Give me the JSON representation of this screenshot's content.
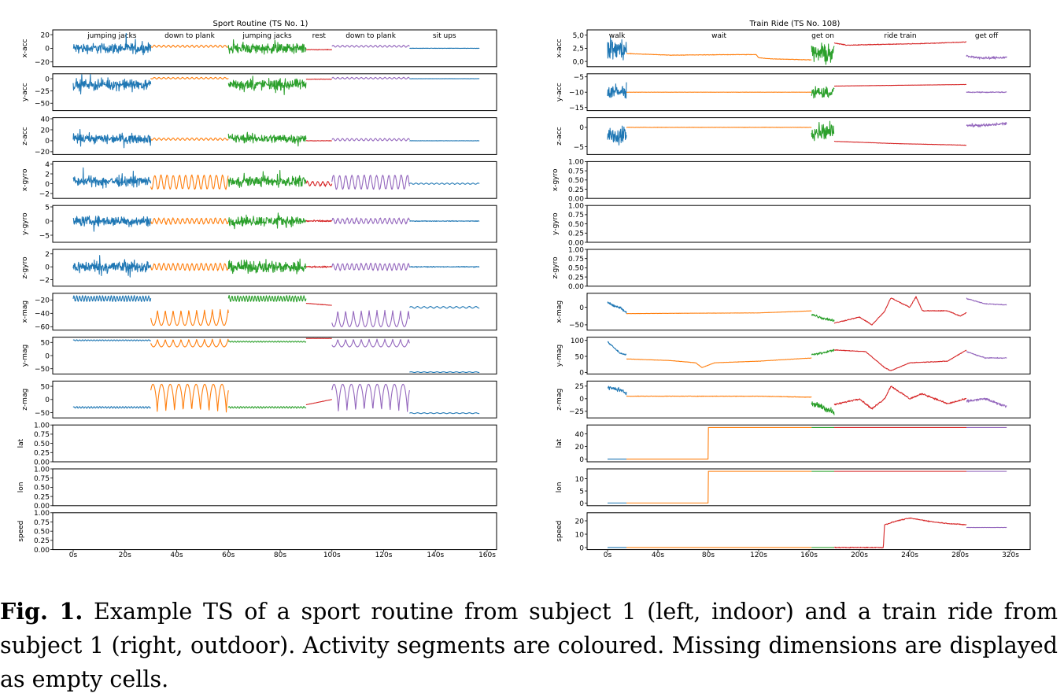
{
  "figure": {
    "colors": [
      "#1f77b4",
      "#ff7f0e",
      "#2ca02c",
      "#d62728",
      "#9467bd"
    ],
    "panels": [
      {
        "title": "Sport Routine (TS No. 1)",
        "x_tick_labels": [
          "0s",
          "20s",
          "40s",
          "60s",
          "80s",
          "100s",
          "120s",
          "140s",
          "160s"
        ],
        "chart_data": {
          "type": "line",
          "x_unit": "s",
          "x_range": [
            0,
            160
          ],
          "segments": [
            {
              "label": "jumping jacks",
              "start": 0,
              "end": 30
            },
            {
              "label": "down to plank",
              "start": 30,
              "end": 60
            },
            {
              "label": "jumping jacks",
              "start": 60,
              "end": 90
            },
            {
              "label": "rest",
              "start": 90,
              "end": 100
            },
            {
              "label": "down to plank",
              "start": 100,
              "end": 130
            },
            {
              "label": "sit ups",
              "start": 130,
              "end": 157
            }
          ],
          "series": [
            {
              "name": "x-acc",
              "ylim": [
                -27,
                27
              ],
              "yticks": [
                "20",
                "0",
                "−20"
              ]
            },
            {
              "name": "y-acc",
              "ylim": [
                -65,
                10
              ],
              "yticks": [
                "0",
                "−25",
                "−50"
              ]
            },
            {
              "name": "z-acc",
              "ylim": [
                -25,
                42
              ],
              "yticks": [
                "40",
                "20",
                "0",
                "−20"
              ]
            },
            {
              "name": "x-gyro",
              "ylim": [
                -3,
                4.5
              ],
              "yticks": [
                "4",
                "2",
                "0",
                "−2"
              ]
            },
            {
              "name": "y-gyro",
              "ylim": [
                -7.5,
                5.5
              ],
              "yticks": [
                "5",
                "0",
                "−5"
              ]
            },
            {
              "name": "z-gyro",
              "ylim": [
                -3,
                2.7
              ],
              "yticks": [
                "2",
                "0",
                "−2"
              ]
            },
            {
              "name": "x-mag",
              "ylim": [
                -65,
                -10
              ],
              "yticks": [
                "−20",
                "−40",
                "−60"
              ]
            },
            {
              "name": "y-mag",
              "ylim": [
                -70,
                70
              ],
              "yticks": [
                "50",
                "0",
                "−50"
              ]
            },
            {
              "name": "z-mag",
              "ylim": [
                -70,
                70
              ],
              "yticks": [
                "50",
                "0",
                "−50"
              ]
            },
            {
              "name": "lat",
              "empty": true,
              "ylim": [
                0,
                1
              ],
              "yticks": [
                "1.00",
                "0.75",
                "0.50",
                "0.25",
                "0.00"
              ]
            },
            {
              "name": "lon",
              "empty": true,
              "ylim": [
                0,
                1
              ],
              "yticks": [
                "1.00",
                "0.75",
                "0.50",
                "0.25",
                "0.00"
              ]
            },
            {
              "name": "speed",
              "empty": true,
              "ylim": [
                0,
                1
              ],
              "yticks": [
                "1.00",
                "0.75",
                "0.50",
                "0.25",
                "0.00"
              ]
            }
          ]
        }
      },
      {
        "title": "Train Ride (TS No. 108)",
        "x_tick_labels": [
          "0s",
          "40s",
          "80s",
          "120s",
          "160s",
          "200s",
          "240s",
          "280s",
          "320s"
        ],
        "chart_data": {
          "type": "line",
          "x_unit": "s",
          "x_range": [
            0,
            320
          ],
          "segments": [
            {
              "label": "walk",
              "start": 0,
              "end": 15
            },
            {
              "label": "wait",
              "start": 15,
              "end": 162
            },
            {
              "label": "get on",
              "start": 162,
              "end": 180
            },
            {
              "label": "ride  train",
              "start": 180,
              "end": 285
            },
            {
              "label": "get off",
              "start": 285,
              "end": 317
            }
          ],
          "series": [
            {
              "name": "x-acc",
              "ylim": [
                -1,
                6
              ],
              "yticks": [
                "5,0",
                "2,5",
                "0,0"
              ]
            },
            {
              "name": "y-acc",
              "ylim": [
                -16,
                -4
              ],
              "yticks": [
                "−5",
                "−10",
                "−15"
              ]
            },
            {
              "name": "z-acc",
              "ylim": [
                -7,
                2.5
              ],
              "yticks": [
                "0",
                "−5"
              ]
            },
            {
              "name": "x-gyro",
              "empty": true,
              "ylim": [
                0,
                1
              ],
              "yticks": [
                "1.00",
                "0.75",
                "0.50",
                "0.25",
                "0.00"
              ]
            },
            {
              "name": "y-gyro",
              "empty": true,
              "ylim": [
                0,
                1
              ],
              "yticks": [
                "1.00",
                "0.75",
                "0.50",
                "0.25",
                "0.00"
              ]
            },
            {
              "name": "z-gyro",
              "empty": true,
              "ylim": [
                0,
                1
              ],
              "yticks": [
                "1.00",
                "0.75",
                "0.50",
                "0.25",
                "0.00"
              ]
            },
            {
              "name": "x-mag",
              "ylim": [
                -65,
                40
              ],
              "yticks": [
                "0",
                "−50"
              ]
            },
            {
              "name": "y-mag",
              "ylim": [
                -5,
                110
              ],
              "yticks": [
                "100",
                "50",
                "0"
              ]
            },
            {
              "name": "z-mag",
              "ylim": [
                -38,
                35
              ],
              "yticks": [
                "25",
                "0",
                "−25"
              ]
            },
            {
              "name": "lat",
              "ylim": [
                -4,
                54
              ],
              "yticks": [
                "40",
                "20",
                "0"
              ]
            },
            {
              "name": "lon",
              "ylim": [
                -1,
                14
              ],
              "yticks": [
                "10",
                "5",
                "0"
              ]
            },
            {
              "name": "speed",
              "ylim": [
                -1.5,
                26
              ],
              "yticks": [
                "20",
                "10",
                "0"
              ]
            }
          ]
        }
      }
    ]
  },
  "caption": {
    "label": "Fig. 1.",
    "text": " Example TS of a sport routine from subject 1 (left, indoor) and a train ride from subject 1 (right, outdoor). Activity segments are coloured. Missing dimensions are displayed as empty cells."
  }
}
